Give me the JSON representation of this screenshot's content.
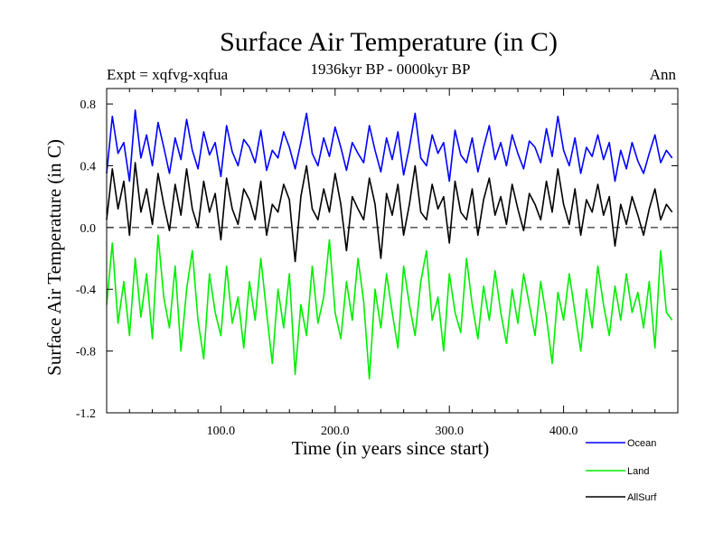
{
  "chart_data": {
    "type": "line",
    "title": "Surface Air Temperature (in C)",
    "subtitle": "1936kyr BP - 0000kyr BP",
    "experiment_label": "Expt = xqfvg-xqfua",
    "period_label": "Ann",
    "xlabel": "Time (in years since start)",
    "ylabel": "Surface Air Temperature (in C)",
    "xlim": [
      0,
      500
    ],
    "ylim": [
      -1.2,
      0.9
    ],
    "xticks": [
      100,
      200,
      300,
      400
    ],
    "xtick_labels": [
      "100.0",
      "200.0",
      "300.0",
      "400.0"
    ],
    "yticks": [
      -1.2,
      -0.8,
      -0.4,
      0.0,
      0.4,
      0.8
    ],
    "ytick_labels": [
      "-1.2",
      "-0.8",
      "-0.4",
      "0.0",
      "0.4",
      "0.8"
    ],
    "zero_line": 0.0,
    "grid": false,
    "legend_position": "below-right",
    "series": [
      {
        "name": "Ocean",
        "color": "#0000ff",
        "x_start": 0,
        "x_step": 5,
        "values": [
          0.35,
          0.72,
          0.48,
          0.55,
          0.3,
          0.76,
          0.45,
          0.6,
          0.4,
          0.68,
          0.52,
          0.35,
          0.58,
          0.44,
          0.7,
          0.5,
          0.38,
          0.62,
          0.47,
          0.55,
          0.33,
          0.66,
          0.49,
          0.4,
          0.57,
          0.52,
          0.42,
          0.63,
          0.37,
          0.5,
          0.45,
          0.62,
          0.52,
          0.38,
          0.55,
          0.74,
          0.48,
          0.4,
          0.58,
          0.46,
          0.65,
          0.52,
          0.37,
          0.55,
          0.48,
          0.42,
          0.66,
          0.5,
          0.36,
          0.58,
          0.44,
          0.62,
          0.34,
          0.52,
          0.74,
          0.45,
          0.4,
          0.6,
          0.48,
          0.55,
          0.3,
          0.63,
          0.47,
          0.42,
          0.58,
          0.36,
          0.52,
          0.66,
          0.44,
          0.55,
          0.4,
          0.6,
          0.48,
          0.38,
          0.56,
          0.52,
          0.42,
          0.64,
          0.46,
          0.72,
          0.5,
          0.4,
          0.58,
          0.35,
          0.52,
          0.46,
          0.6,
          0.44,
          0.55,
          0.3,
          0.5,
          0.38,
          0.55,
          0.43,
          0.35,
          0.48,
          0.6,
          0.42,
          0.5,
          0.45
        ]
      },
      {
        "name": "Land",
        "color": "#00ee00",
        "x_start": 0,
        "x_step": 5,
        "values": [
          -0.5,
          -0.1,
          -0.62,
          -0.35,
          -0.7,
          -0.2,
          -0.58,
          -0.3,
          -0.72,
          -0.05,
          -0.45,
          -0.65,
          -0.25,
          -0.8,
          -0.4,
          -0.15,
          -0.6,
          -0.85,
          -0.3,
          -0.55,
          -0.7,
          -0.25,
          -0.62,
          -0.45,
          -0.78,
          -0.35,
          -0.6,
          -0.2,
          -0.55,
          -0.88,
          -0.4,
          -0.65,
          -0.3,
          -0.95,
          -0.5,
          -0.7,
          -0.25,
          -0.62,
          -0.45,
          -0.08,
          -0.55,
          -0.72,
          -0.35,
          -0.6,
          -0.2,
          -0.48,
          -0.98,
          -0.4,
          -0.65,
          -0.3,
          -0.55,
          -0.78,
          -0.25,
          -0.5,
          -0.7,
          -0.35,
          -0.15,
          -0.6,
          -0.45,
          -0.8,
          -0.3,
          -0.55,
          -0.68,
          -0.2,
          -0.5,
          -0.72,
          -0.38,
          -0.6,
          -0.28,
          -0.55,
          -0.75,
          -0.4,
          -0.62,
          -0.3,
          -0.5,
          -0.7,
          -0.35,
          -0.58,
          -0.88,
          -0.42,
          -0.6,
          -0.3,
          -0.55,
          -0.8,
          -0.4,
          -0.65,
          -0.25,
          -0.5,
          -0.7,
          -0.38,
          -0.6,
          -0.3,
          -0.55,
          -0.42,
          -0.65,
          -0.35,
          -0.78,
          -0.15,
          -0.55,
          -0.6
        ]
      },
      {
        "name": "AllSurf",
        "color": "#000000",
        "x_start": 0,
        "x_step": 5,
        "values": [
          0.05,
          0.38,
          0.12,
          0.3,
          -0.05,
          0.42,
          0.1,
          0.25,
          0.02,
          0.35,
          0.15,
          -0.02,
          0.28,
          0.08,
          0.38,
          0.12,
          0.0,
          0.3,
          0.1,
          0.22,
          -0.08,
          0.32,
          0.12,
          0.02,
          0.25,
          0.18,
          0.05,
          0.3,
          -0.05,
          0.15,
          0.1,
          0.28,
          0.18,
          -0.22,
          0.2,
          0.4,
          0.12,
          0.05,
          0.25,
          0.1,
          0.35,
          0.15,
          -0.15,
          0.2,
          0.12,
          0.05,
          0.32,
          0.15,
          -0.2,
          0.22,
          0.08,
          0.28,
          -0.05,
          0.15,
          0.4,
          0.1,
          0.05,
          0.28,
          0.12,
          0.2,
          -0.1,
          0.3,
          0.1,
          0.05,
          0.25,
          -0.05,
          0.18,
          0.32,
          0.08,
          0.2,
          0.02,
          0.28,
          0.12,
          -0.02,
          0.22,
          0.15,
          0.05,
          0.3,
          0.1,
          0.38,
          0.15,
          0.02,
          0.25,
          -0.05,
          0.18,
          0.1,
          0.28,
          0.08,
          0.2,
          -0.12,
          0.15,
          0.02,
          0.2,
          0.08,
          -0.05,
          0.12,
          0.25,
          0.05,
          0.15,
          0.1
        ]
      }
    ]
  }
}
